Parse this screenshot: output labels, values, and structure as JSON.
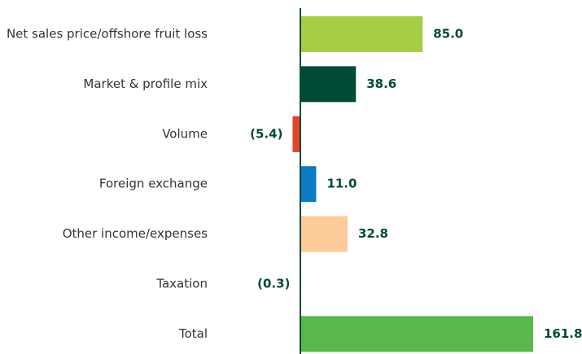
{
  "chart_data": {
    "type": "bar",
    "orientation": "horizontal",
    "categories": [
      "Net sales price/offshore fruit loss",
      "Market & profile mix",
      "Volume",
      "Foreign exchange",
      "Other income/expenses",
      "Taxation",
      "Total"
    ],
    "values": [
      85.0,
      38.6,
      -5.4,
      11.0,
      32.8,
      -0.3,
      161.8
    ],
    "value_labels": [
      "85.0",
      "38.6",
      "(5.4)",
      "11.0",
      "32.8",
      "(0.3)",
      "161.8"
    ],
    "colors": [
      "#a6ce45",
      "#004b36",
      "#e0442a",
      "#0c7cc4",
      "#fccb9a",
      "#004b36",
      "#58b84a"
    ]
  }
}
